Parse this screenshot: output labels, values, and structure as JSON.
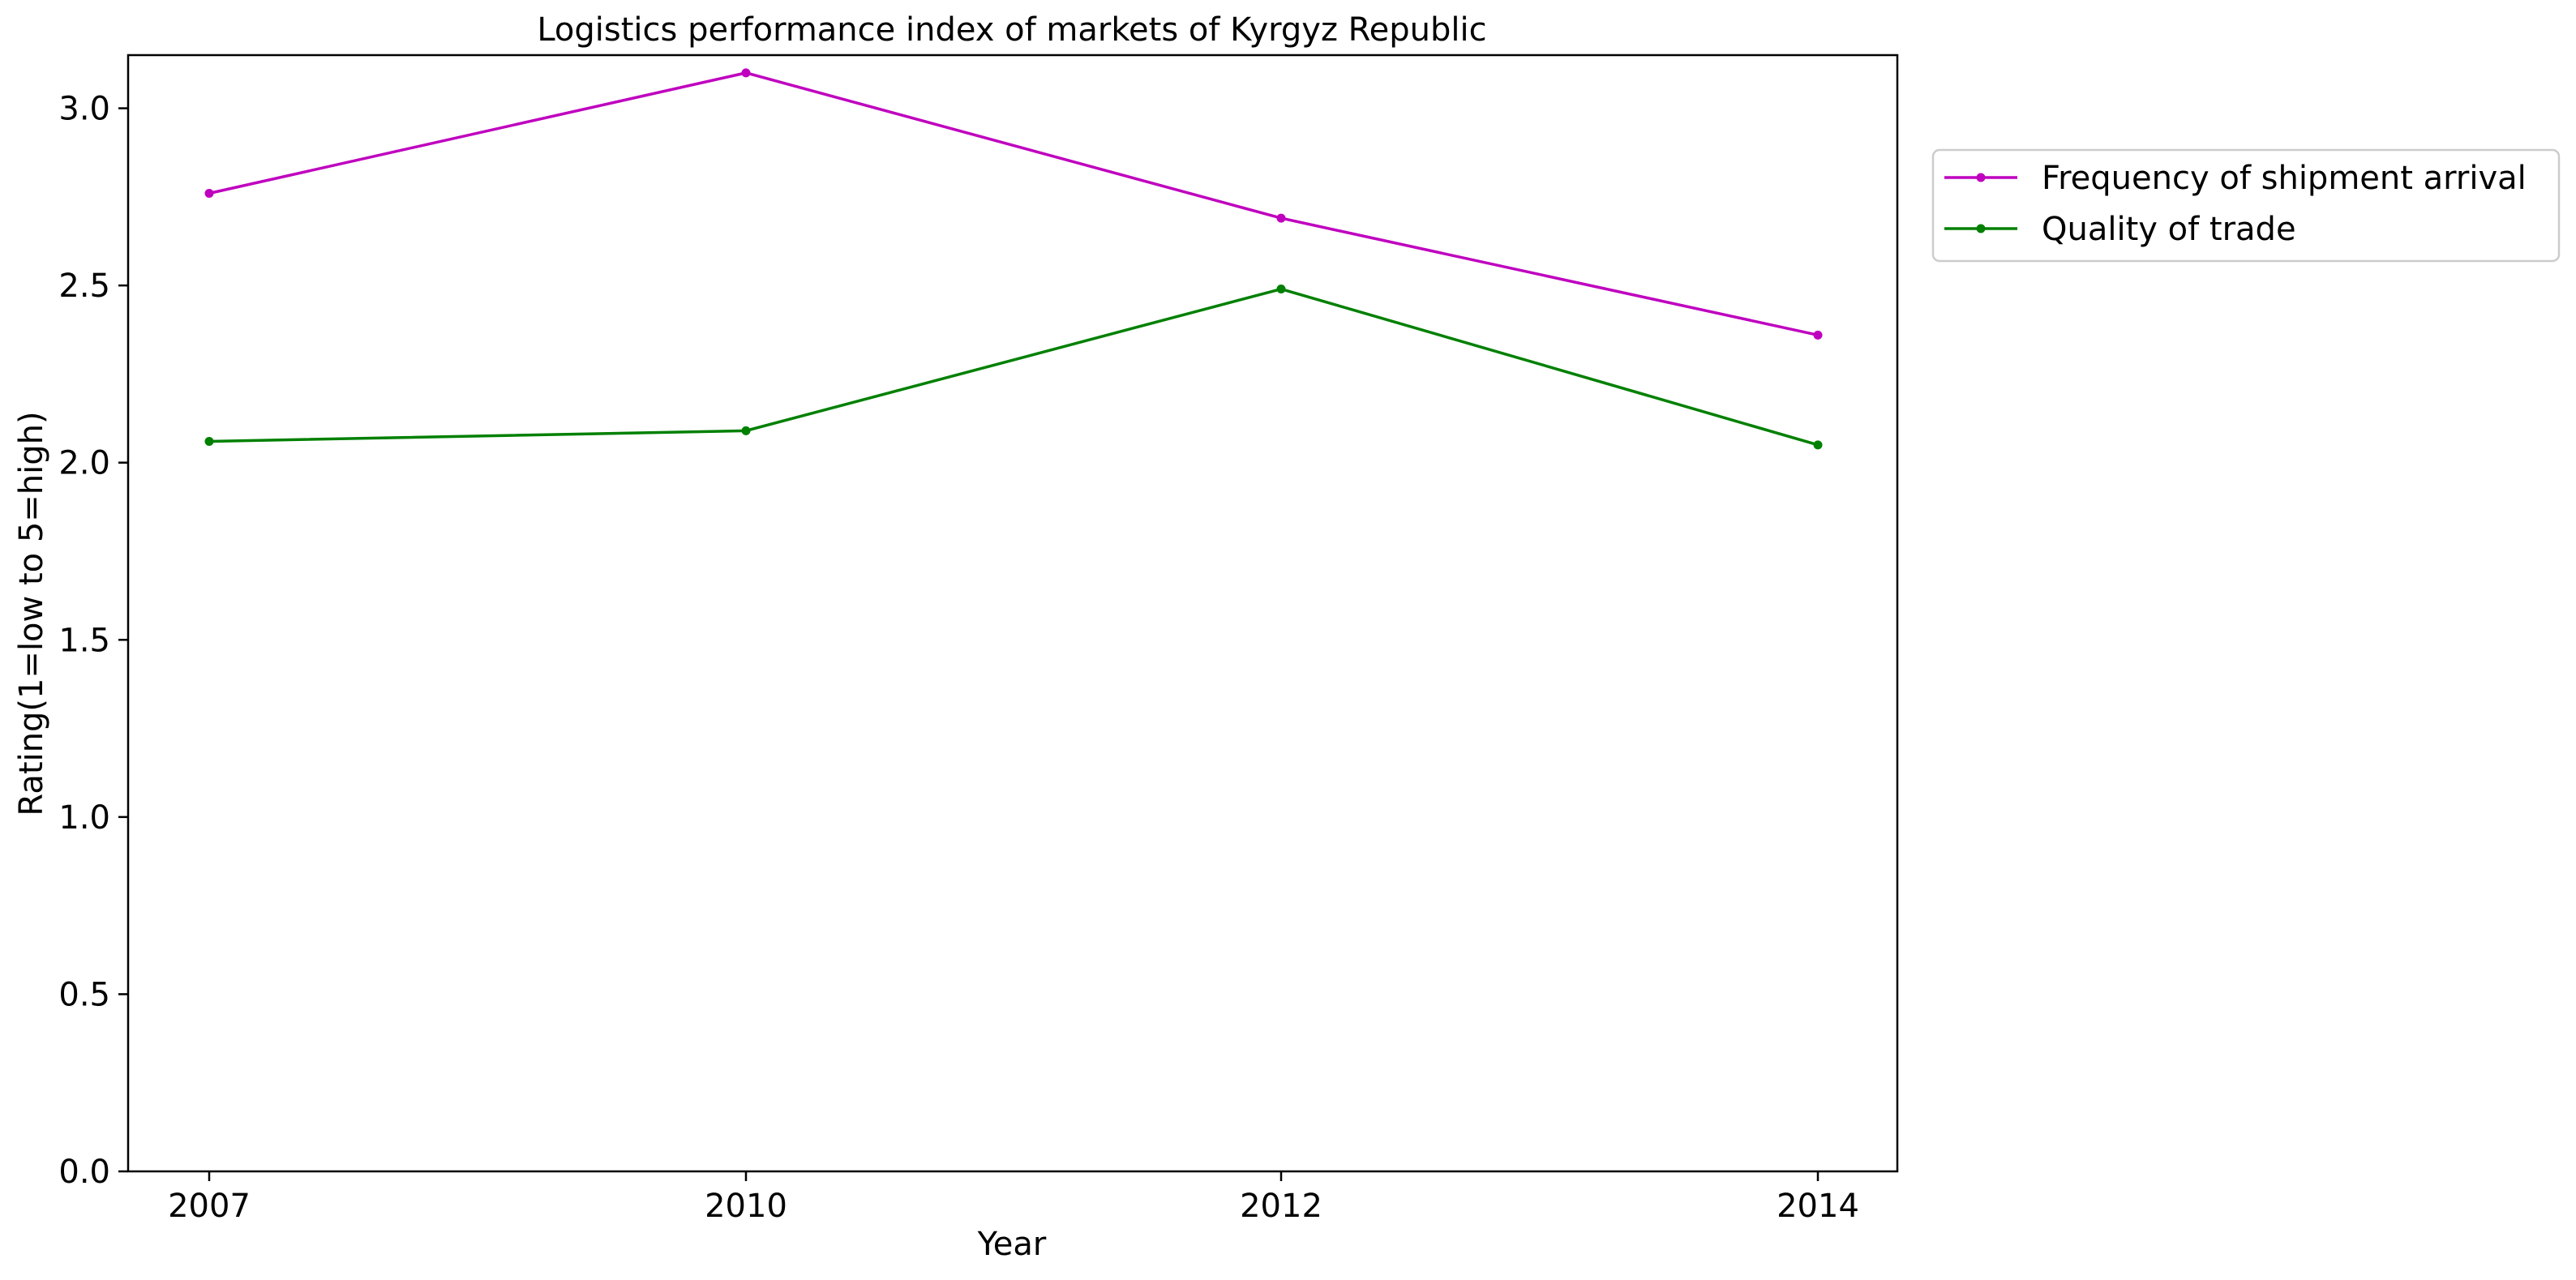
{
  "chart_data": {
    "type": "line",
    "title": "Logistics performance index of markets of Kyrgyz Republic",
    "xlabel": "Year",
    "ylabel": "Rating(1=low to 5=high)",
    "categories": [
      "2007",
      "2010",
      "2012",
      "2014"
    ],
    "ylim": [
      0,
      3.15
    ],
    "yticks": [
      "0.0",
      "0.5",
      "1.0",
      "1.5",
      "2.0",
      "2.5",
      "3.0"
    ],
    "grid": false,
    "legend_position": "outside-right-top",
    "series": [
      {
        "name": "Frequency of shipment arrival",
        "color": "#bf00bf",
        "values": [
          2.76,
          3.1,
          2.69,
          2.36
        ]
      },
      {
        "name": "Quality of trade",
        "color": "#008000",
        "values": [
          2.06,
          2.09,
          2.49,
          2.05
        ]
      }
    ]
  }
}
